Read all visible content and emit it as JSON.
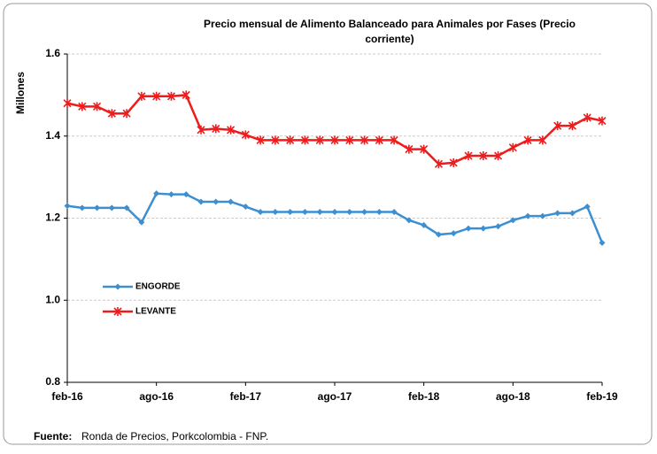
{
  "chart_data": {
    "type": "line",
    "title": "Precio mensual de Alimento Balanceado para Animales por Fases (Precio",
    "title_line2": "corriente)",
    "y_label": "Millones",
    "source_label": "Fuente:",
    "source": "Ronda de Precios, Porkcolombia - FNP.",
    "categories": [
      "feb-16",
      null,
      null,
      null,
      null,
      null,
      "ago-16",
      null,
      null,
      null,
      null,
      null,
      "feb-17",
      null,
      null,
      null,
      null,
      null,
      "ago-17",
      null,
      null,
      null,
      null,
      null,
      "feb-18",
      null,
      null,
      null,
      null,
      null,
      "ago-18",
      null,
      null,
      null,
      null,
      null,
      "feb-19"
    ],
    "series": [
      {
        "name": "ENGORDE",
        "color": "#3d8fd0",
        "marker": "diamond",
        "values": [
          1.23,
          1.225,
          1.225,
          1.225,
          1.225,
          1.19,
          1.26,
          1.258,
          1.258,
          1.24,
          1.24,
          1.24,
          1.228,
          1.215,
          1.215,
          1.215,
          1.215,
          1.215,
          1.215,
          1.215,
          1.215,
          1.215,
          1.215,
          1.195,
          1.183,
          1.16,
          1.163,
          1.175,
          1.175,
          1.18,
          1.195,
          1.205,
          1.205,
          1.212,
          1.212,
          1.228,
          1.14
        ]
      },
      {
        "name": "LEVANTE",
        "color": "#ee1c1c",
        "marker": "star",
        "values": [
          1.48,
          1.472,
          1.472,
          1.455,
          1.455,
          1.497,
          1.497,
          1.497,
          1.5,
          1.415,
          1.418,
          1.415,
          1.403,
          1.39,
          1.39,
          1.39,
          1.39,
          1.39,
          1.39,
          1.39,
          1.39,
          1.39,
          1.39,
          1.368,
          1.368,
          1.332,
          1.335,
          1.352,
          1.352,
          1.352,
          1.372,
          1.39,
          1.39,
          1.425,
          1.425,
          1.445,
          1.437
        ]
      }
    ],
    "ylim": [
      0.8,
      1.6
    ],
    "yticks": [
      0.8,
      {
        "value": 1,
        "label": "1.0"
      },
      1.2,
      1.4,
      1.6
    ],
    "grid": true,
    "legend": "left"
  }
}
